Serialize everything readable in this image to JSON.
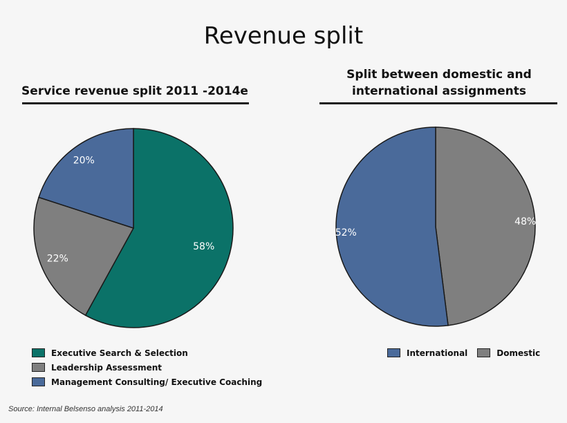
{
  "page": {
    "title": "Revenue split",
    "source": "Source: Internal Belsenso analysis 2011-2014"
  },
  "chart_data": [
    {
      "type": "pie",
      "title": "Service revenue split 2011 -2014e",
      "categories": [
        "Executive Search & Selection",
        "Leadership Assessment",
        "Management Consulting/ Executive Coaching"
      ],
      "values": [
        58,
        22,
        20
      ],
      "labels": [
        "58%",
        "22%",
        "20%"
      ],
      "colors": [
        "#0b7268",
        "#7f7f7f",
        "#4a6a9a"
      ],
      "legend": "bottom"
    },
    {
      "type": "pie",
      "title": "Split between domestic and international assignments",
      "title_lines": [
        "Split between domestic and",
        "international assignments"
      ],
      "categories": [
        "Domestic",
        "International"
      ],
      "values": [
        48,
        52
      ],
      "labels": [
        "48%",
        "52%"
      ],
      "colors": [
        "#7f7f7f",
        "#4a6a9a"
      ],
      "legend_order": [
        "International",
        "Domestic"
      ],
      "legend": "bottom"
    }
  ]
}
